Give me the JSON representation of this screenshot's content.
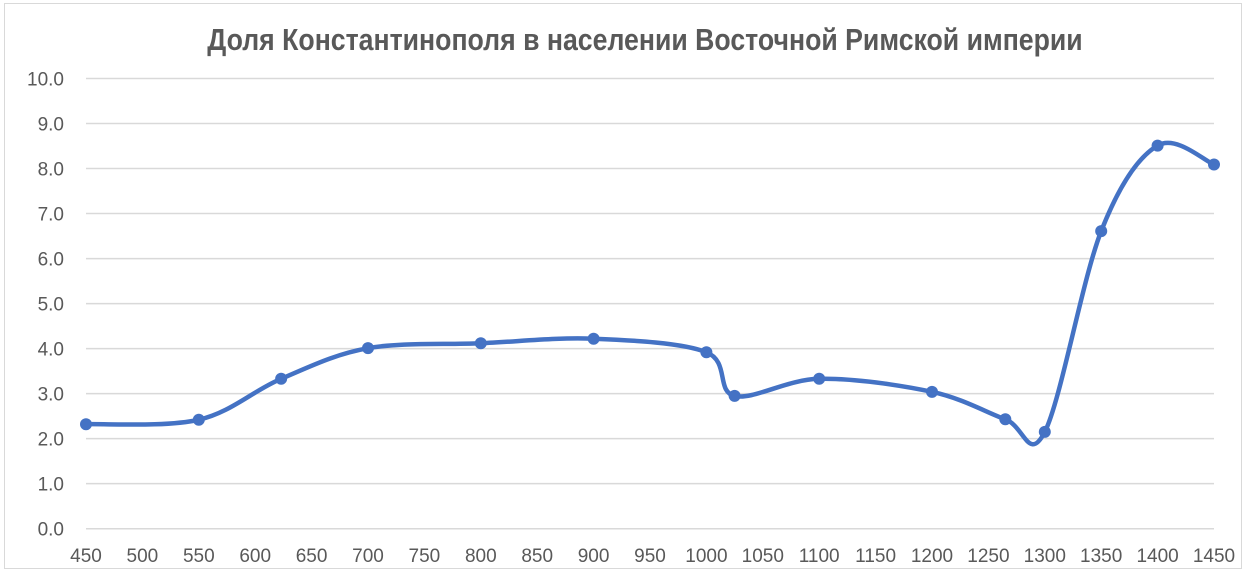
{
  "chart_data": {
    "type": "line",
    "title": "Доля Константинополя в населении Восточной Римской империи",
    "xlabel": "",
    "ylabel": "",
    "xlim": [
      450,
      1450
    ],
    "ylim": [
      0,
      10
    ],
    "x_ticks": [
      "450",
      "500",
      "550",
      "600",
      "650",
      "700",
      "750",
      "800",
      "850",
      "900",
      "950",
      "1000",
      "1050",
      "1100",
      "1150",
      "1200",
      "1250",
      "1300",
      "1350",
      "1400",
      "1450"
    ],
    "y_ticks": [
      "0.0",
      "1.0",
      "2.0",
      "3.0",
      "4.0",
      "5.0",
      "6.0",
      "7.0",
      "8.0",
      "9.0",
      "10.0"
    ],
    "grid": true,
    "legend": "none",
    "smooth": true,
    "color": "#4472c4",
    "series": [
      {
        "x": [
          450,
          550,
          623,
          700,
          800,
          900,
          1000,
          1025,
          1100,
          1200,
          1265,
          1300,
          1350,
          1400,
          1450
        ],
        "y": [
          2.32,
          2.42,
          3.33,
          4.01,
          4.12,
          4.22,
          3.92,
          2.95,
          3.33,
          3.04,
          2.43,
          2.15,
          6.61,
          8.51,
          8.09
        ]
      }
    ]
  }
}
